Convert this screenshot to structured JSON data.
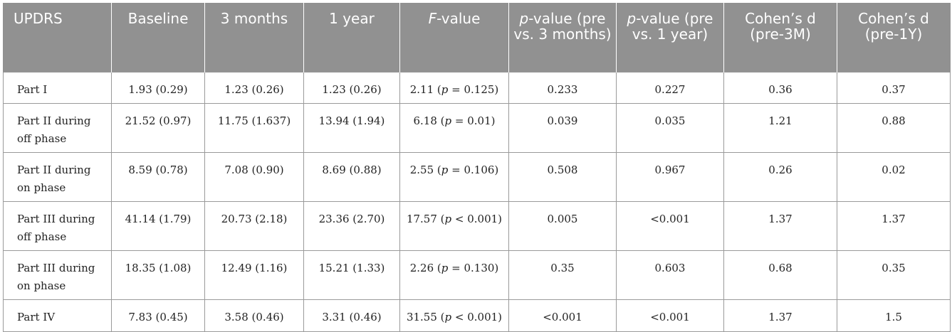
{
  "table": {
    "headers": {
      "updrs": "UPDRS",
      "baseline": "Baseline",
      "m3": "3 months",
      "y1": "1 year",
      "f_italic": "F",
      "f_rest": "-value",
      "p3_italic": "p",
      "p3_rest": "-value (pre vs. 3 months)",
      "p1_italic": "p",
      "p1_rest": "-value (pre vs. 1 year)",
      "d3": "Cohen’s d (pre-3M)",
      "d1": "Cohen’s d (pre-1Y)"
    },
    "rows": [
      {
        "label": "Part I",
        "baseline": "1.93 (0.29)",
        "m3": "1.23 (0.26)",
        "y1": "1.23 (0.26)",
        "f_val": "2.11 (",
        "f_p": "p",
        "f_rest": " = 0.125)",
        "p3": "0.233",
        "p1": "0.227",
        "d3": "0.36",
        "d1": "0.37"
      },
      {
        "label": "Part II during off phase",
        "baseline": "21.52 (0.97)",
        "m3": "11.75 (1.637)",
        "y1": "13.94 (1.94)",
        "f_val": "6.18 (",
        "f_p": "p",
        "f_rest": " = 0.01)",
        "p3": "0.039",
        "p1": "0.035",
        "d3": "1.21",
        "d1": "0.88"
      },
      {
        "label": "Part II during on phase",
        "baseline": "8.59 (0.78)",
        "m3": "7.08 (0.90)",
        "y1": "8.69 (0.88)",
        "f_val": "2.55 (",
        "f_p": "p",
        "f_rest": " = 0.106)",
        "p3": "0.508",
        "p1": "0.967",
        "d3": "0.26",
        "d1": "0.02"
      },
      {
        "label": "Part III during off phase",
        "baseline": "41.14 (1.79)",
        "m3": "20.73 (2.18)",
        "y1": "23.36 (2.70)",
        "f_val": "17.57 (",
        "f_p": "p",
        "f_rest": " < 0.001)",
        "p3": "0.005",
        "p1": "<0.001",
        "d3": "1.37",
        "d1": "1.37"
      },
      {
        "label": "Part III during on phase",
        "baseline": "18.35 (1.08)",
        "m3": "12.49 (1.16)",
        "y1": "15.21 (1.33)",
        "f_val": "2.26 (",
        "f_p": "p",
        "f_rest": " = 0.130)",
        "p3": "0.35",
        "p1": "0.603",
        "d3": "0.68",
        "d1": "0.35"
      },
      {
        "label": "Part IV",
        "baseline": "7.83 (0.45)",
        "m3": "3.58 (0.46)",
        "y1": "3.31 (0.46)",
        "f_val": "31.55 (",
        "f_p": "p",
        "f_rest": " < 0.001)",
        "p3": "<0.001",
        "p1": "<0.001",
        "d3": "1.37",
        "d1": "1.5"
      }
    ]
  },
  "colors": {
    "header_bg": "#919191",
    "header_text": "#ffffff",
    "border": "#9a9a9a",
    "body_text": "#222222"
  }
}
